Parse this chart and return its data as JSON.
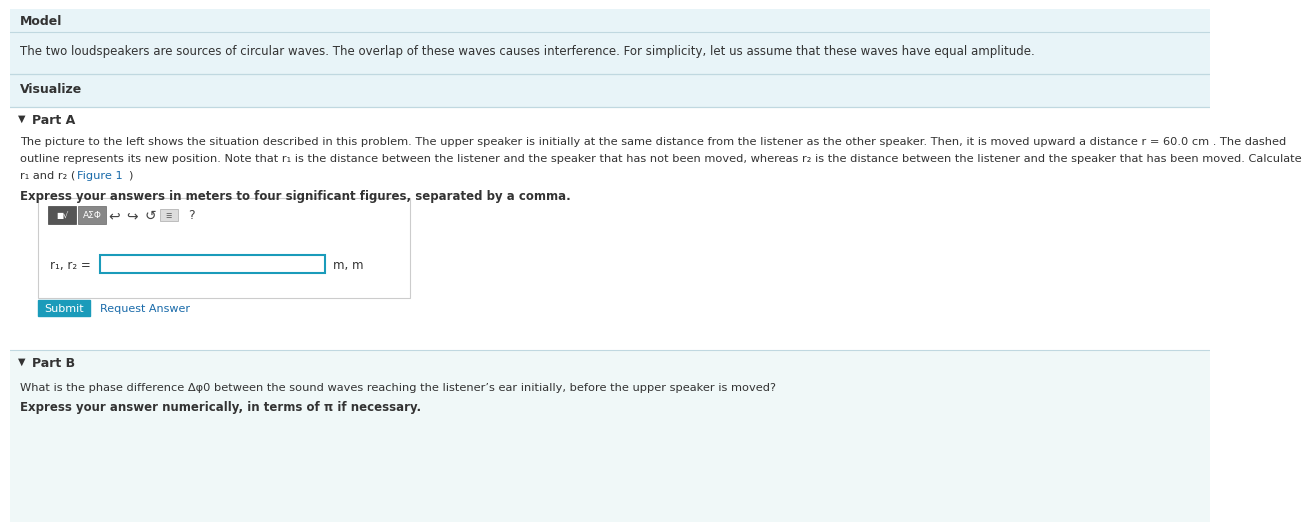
{
  "bg_color": "#ffffff",
  "model_bg": "#e8f4f8",
  "visualize_bg": "#e8f4f8",
  "parta_bg": "#ffffff",
  "partb_bg": "#f0f8f8",
  "section_border": "#c0d8e0",
  "model_label": "Model",
  "model_text": "The two loudspeakers are sources of circular waves. The overlap of these waves causes interference. For simplicity, let us assume that these waves have equal amplitude.",
  "visualize_label": "Visualize",
  "parta_label": "Part A",
  "parta_line1": "The picture to the left shows the situation described in this problem. The upper speaker is initially at the same distance from the listener as the other speaker. Then, it is moved upward a distance r = 60.0 cm . The dashed",
  "parta_line2": "outline represents its new position. Note that r₁ is the distance between the listener and the speaker that has not been moved, whereas r₂ is the distance between the listener and the speaker that has been moved. Calculate",
  "parta_line3a": "r₁ and r₂ (",
  "parta_line3b": "Figure 1",
  "parta_line3c": ")",
  "parta_instruction": "Express your answers in meters to four significant figures, separated by a comma.",
  "parta_answer_label": "r₁, r₂ =",
  "parta_units": "m, m",
  "submit_bg": "#1a9bba",
  "submit_text": "Submit",
  "request_text": "Request Answer",
  "request_color": "#1a6baa",
  "partb_label": "Part B",
  "partb_text": "What is the phase difference Δφ0 between the sound waves reaching the listener’s ear initially, before the upper speaker is moved?",
  "partb_instruction": "Express your answer numerically, in terms of π if necessary.",
  "text_color": "#333333",
  "label_color": "#333333"
}
